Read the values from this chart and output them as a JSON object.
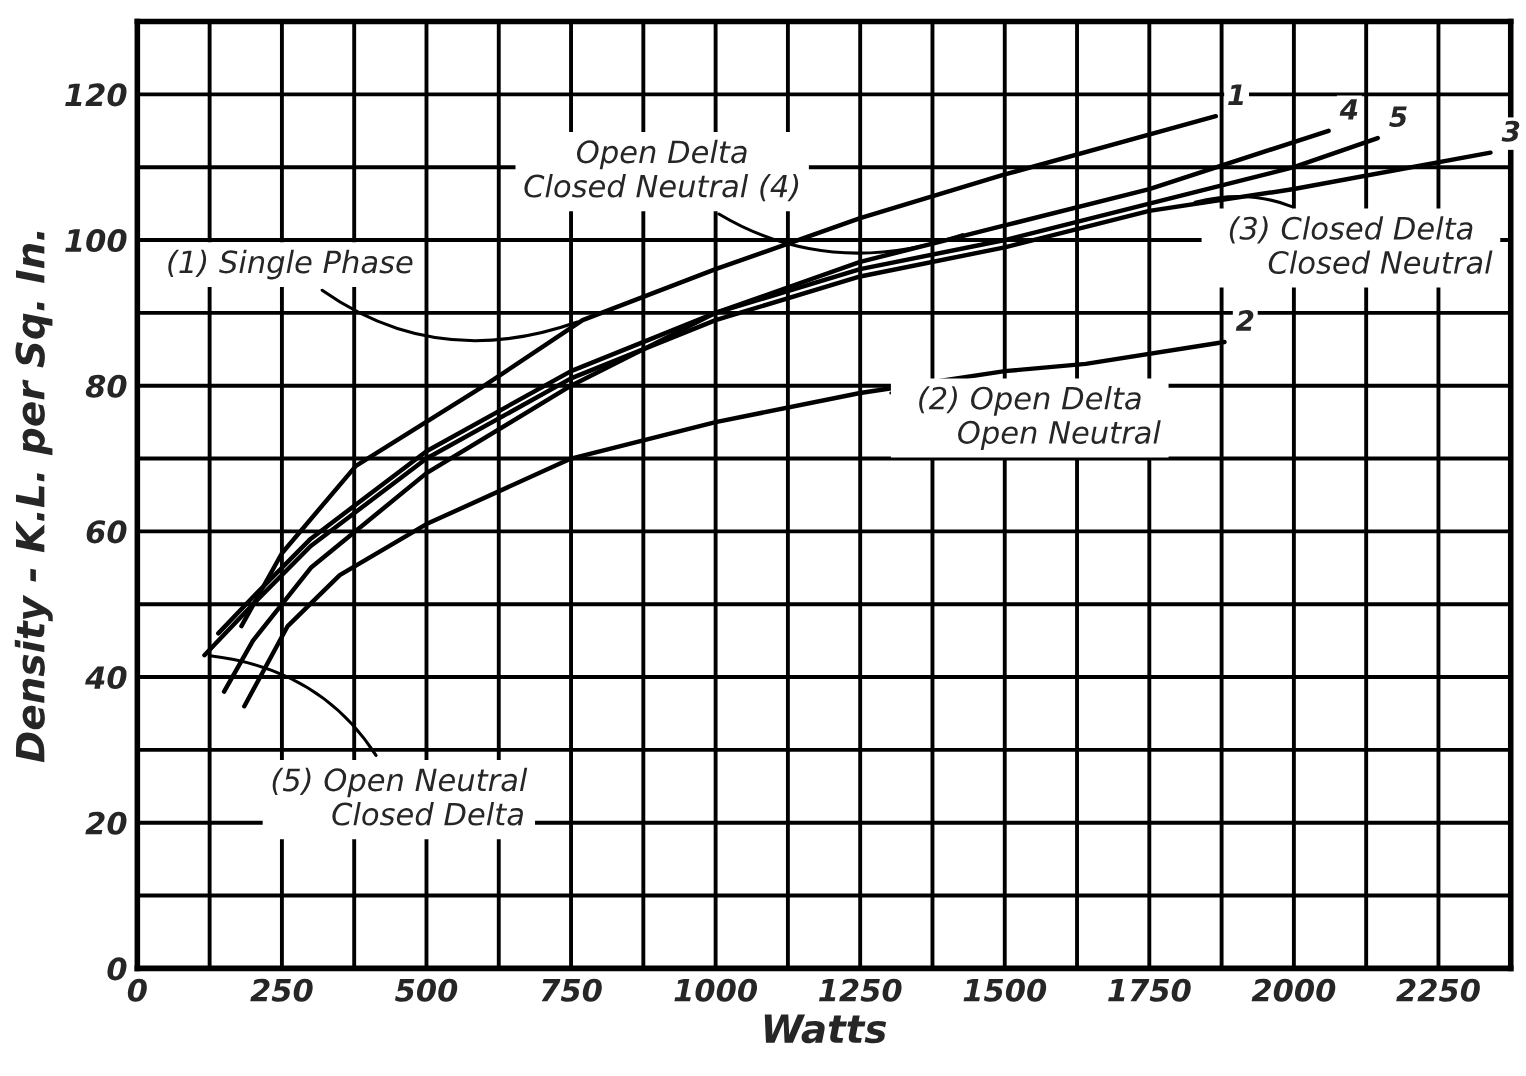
{
  "chart_data": {
    "type": "line",
    "xlabel": "Watts",
    "ylabel": "Density - K.L. per Sq. In.",
    "xlim": [
      0,
      2375
    ],
    "ylim": [
      0,
      130
    ],
    "xticks": [
      0,
      {
        "value": 125,
        "label": null
      },
      250,
      {
        "value": 375,
        "label": null
      },
      500,
      {
        "value": 625,
        "label": null
      },
      750,
      {
        "value": 875,
        "label": null
      },
      1000,
      {
        "value": 1125,
        "label": null
      },
      1250,
      {
        "value": 1375,
        "label": null
      },
      1500,
      {
        "value": 1625,
        "label": null
      },
      1750,
      {
        "value": 1875,
        "label": null
      },
      2000,
      {
        "value": 2125,
        "label": null
      },
      2250
    ],
    "yticks": [
      0,
      {
        "value": 10,
        "label": null
      },
      20,
      {
        "value": 30,
        "label": null
      },
      40,
      {
        "value": 50,
        "label": null
      },
      60,
      {
        "value": 70,
        "label": null
      },
      80,
      {
        "value": 90,
        "label": null
      },
      100,
      {
        "value": 110,
        "label": null
      },
      120
    ],
    "grid": true,
    "legend": false,
    "marker": "none",
    "line_style": "solid",
    "series": [
      {
        "name": "1",
        "color": "#000000",
        "x": [
          180,
          250,
          378,
          600,
          770,
          1000,
          1250,
          1500,
          1865
        ],
        "values": [
          47,
          57,
          69,
          80,
          89,
          96,
          103,
          109,
          117
        ]
      },
      {
        "name": "2",
        "color": "#000000",
        "x": [
          185,
          260,
          350,
          500,
          750,
          1000,
          1250,
          1500,
          1640,
          1880
        ],
        "values": [
          36,
          47,
          54,
          61,
          70,
          75,
          79,
          82,
          83,
          86
        ]
      },
      {
        "name": "3",
        "color": "#000000",
        "x": [
          116,
          200,
          300,
          500,
          750,
          1000,
          1250,
          1500,
          1750,
          2000,
          2340
        ],
        "values": [
          43,
          50,
          58,
          70,
          81,
          89,
          95,
          99,
          104,
          107,
          112
        ]
      },
      {
        "name": "4",
        "color": "#000000",
        "x": [
          150,
          200,
          300,
          500,
          750,
          1000,
          1250,
          1500,
          1750,
          2060
        ],
        "values": [
          38,
          45,
          55,
          68,
          80,
          90,
          97,
          102,
          107,
          115
        ]
      },
      {
        "name": "5",
        "color": "#000000",
        "x": [
          140,
          200,
          300,
          500,
          750,
          1000,
          1250,
          1500,
          1750,
          2000,
          2145
        ],
        "values": [
          46,
          51,
          59,
          71,
          82,
          90,
          96,
          100,
          105,
          110,
          114
        ]
      }
    ],
    "annotations": [
      {
        "text": "(1) Single Phase",
        "x": 770,
        "y": 89
      },
      {
        "text": "Open Delta\nClosed Neutral (4)",
        "x": 1436,
        "y": 101
      },
      {
        "text": "(3) Closed Delta\n      Closed Neutral",
        "x": 1820,
        "y": 105
      },
      {
        "text": "(2) Open Delta\n      Open Neutral",
        "x": 1303,
        "y": 79
      },
      {
        "text": "(5) Open Neutral\n      Closed Delta",
        "x": 116,
        "y": 43
      }
    ]
  }
}
